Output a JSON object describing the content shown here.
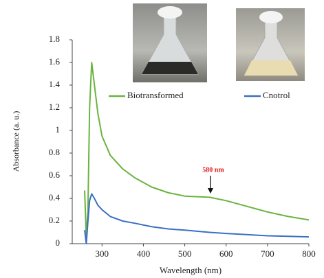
{
  "chart_data": {
    "type": "line",
    "x_label": "Wavelength (nm)",
    "y_label": "Absorbance (a. u.)",
    "annotation": "580 nm",
    "x": [
      258,
      262,
      266,
      270,
      275,
      280,
      290,
      300,
      320,
      350,
      380,
      420,
      460,
      500,
      560,
      600,
      650,
      700,
      750,
      800
    ],
    "series": [
      {
        "name": "Biotransformed",
        "color": "#6ab33e",
        "values": [
          0.47,
          0.05,
          0.3,
          1.2,
          1.6,
          1.45,
          1.15,
          0.95,
          0.78,
          0.66,
          0.58,
          0.5,
          0.45,
          0.42,
          0.41,
          0.38,
          0.33,
          0.28,
          0.24,
          0.21
        ]
      },
      {
        "name": "Cnotrol",
        "color": "#3a6fc4",
        "values": [
          0.12,
          0.0,
          0.2,
          0.38,
          0.44,
          0.41,
          0.34,
          0.3,
          0.24,
          0.2,
          0.18,
          0.15,
          0.13,
          0.12,
          0.1,
          0.09,
          0.08,
          0.07,
          0.065,
          0.06
        ]
      }
    ],
    "xlim": [
      228,
      800
    ],
    "ylim": [
      0,
      1.8
    ],
    "xticks": [
      300,
      400,
      500,
      600,
      700,
      800
    ],
    "yticks": [
      0,
      0.2,
      0.4,
      0.6,
      0.8,
      1,
      1.2,
      1.4,
      1.6,
      1.8
    ],
    "grid": false
  }
}
